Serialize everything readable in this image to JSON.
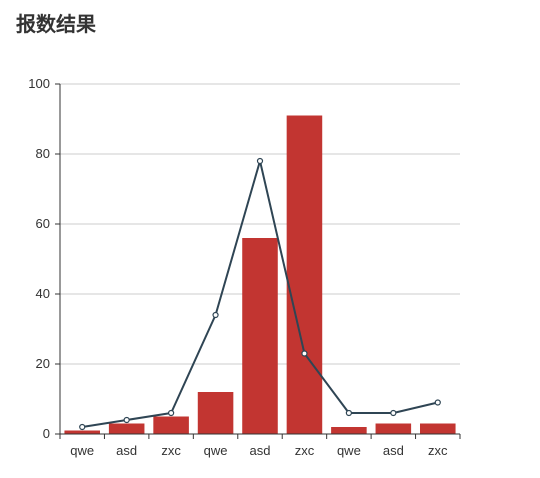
{
  "page": {
    "title": "报数结果"
  },
  "colors": {
    "bar": "#c23531",
    "line": "#2f4554",
    "grid": "#cccccc",
    "axis": "#333333",
    "text": "#333333"
  },
  "chart_data": {
    "type": "bar",
    "title": "",
    "xlabel": "",
    "ylabel": "",
    "categories": [
      "qwe",
      "asd",
      "zxc",
      "qwe",
      "asd",
      "zxc",
      "qwe",
      "asd",
      "zxc"
    ],
    "series": [
      {
        "type": "bar",
        "values": [
          1,
          3,
          5,
          12,
          56,
          91,
          2,
          3,
          3
        ]
      },
      {
        "type": "line",
        "values": [
          2,
          4,
          6,
          34,
          78,
          23,
          6,
          6,
          9
        ]
      }
    ],
    "ylim": [
      0,
      100
    ],
    "yticks": [
      0,
      20,
      40,
      60,
      80,
      100
    ],
    "grid": true,
    "legend": "none"
  }
}
